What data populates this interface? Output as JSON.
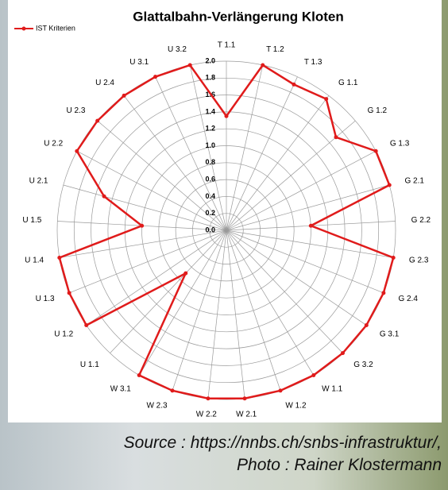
{
  "chart_data": {
    "type": "radar",
    "title": "Glattalbahn-Verlängerung Kloten",
    "categories": [
      "T 1.1",
      "T 1.2",
      "T 1.3",
      "G 1.1",
      "G 1.2",
      "G 1.3",
      "G 2.1",
      "G 2.2",
      "G 2.3",
      "G 2.4",
      "G 3.1",
      "G 3.2",
      "W 1.1",
      "W 1.2",
      "W 2.1",
      "W 2.2",
      "W 2.3",
      "W 3.1",
      "U 1.1",
      "U 1.2",
      "U 1.3",
      "U 1.4",
      "U 1.5",
      "U 2.1",
      "U 2.2",
      "U 2.3",
      "U 2.4",
      "U 3.1",
      "U 3.2"
    ],
    "series": [
      {
        "name": "IST Kriterien",
        "color": "#e01b1b",
        "values": [
          1.35,
          2.0,
          1.9,
          1.95,
          1.7,
          2.0,
          2.0,
          1.0,
          2.0,
          2.0,
          2.0,
          2.0,
          2.0,
          2.0,
          2.0,
          2.0,
          2.0,
          2.0,
          0.7,
          2.0,
          2.0,
          2.0,
          1.0,
          1.5,
          2.0,
          2.0,
          2.0,
          2.0,
          2.0
        ]
      }
    ],
    "ylim": [
      0,
      2
    ],
    "yticks": [
      {
        "value": 0,
        "label": "0.0"
      },
      0.2,
      0.4,
      0.6,
      0.8,
      {
        "value": 1,
        "label": "1.0"
      },
      1.2,
      1.4,
      1.6,
      1.8,
      {
        "value": 2,
        "label": "2.0"
      }
    ],
    "grid": true,
    "legend": "top-left",
    "annotations": [
      "Source : https://nnbs.ch/snbs-infrastruktur/,",
      "Photo : Rainer Klostermann"
    ]
  }
}
